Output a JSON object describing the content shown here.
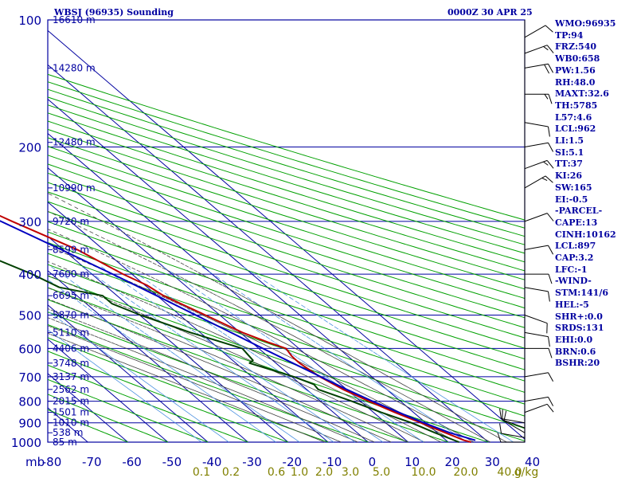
{
  "header": {
    "station": "WBSJ (96935) Sounding",
    "time": "0000Z 30 APR 25"
  },
  "indices": [
    "WMO:96935",
    "TP:94",
    "FRZ:540",
    "WB0:658",
    "PW:1.56",
    "RH:48.0",
    "MAXT:32.6",
    "TH:5785",
    "L57:4.6",
    "LCL:962",
    "LI:1.5",
    "SI:5.1",
    "TT:37",
    "KI:26",
    "SW:165",
    "EI:-0.5",
    "-PARCEL-",
    "CAPE:13",
    "CINH:10162",
    "LCL:897",
    "CAP:3.2",
    "LFC:-1",
    "-WIND-",
    "STM:141/6",
    "HEL:-5",
    "SHR+:0.0",
    "SRDS:131",
    "EHI:0.0",
    "BRN:0.6",
    "BSHR:20"
  ],
  "colors": {
    "grid": "#0000a0",
    "dry_adiabat": "#00a000",
    "moist_adiabat": "#404040",
    "mixing_ratio": "#4a90e0",
    "temperature": "#c00000",
    "dewpoint": "#004000",
    "parcel": "#0000c0",
    "mixing_labels": "#808000",
    "wind_barb": "#000000"
  },
  "chart_data": {
    "type": "skew-t log-p sounding",
    "x_axis_unit_label": "mb",
    "pressure_levels_mb": [
      100,
      200,
      300,
      400,
      500,
      600,
      700,
      800,
      900,
      1000
    ],
    "temperature_ticks_c": [
      -80,
      -70,
      -60,
      -50,
      -40,
      -30,
      -20,
      -10,
      0,
      10,
      20,
      30,
      40
    ],
    "temperature_tick_labels": [
      "-80",
      "-70",
      "-60",
      "-50",
      "-40",
      "-30",
      "-20",
      "-10",
      "0",
      "10",
      "20",
      "30",
      "40"
    ],
    "mixing_ratio_labels": [
      "0.1",
      "0.2",
      "0.6",
      "1.0",
      "2.0",
      "3.0",
      "5.0",
      "10.0",
      "20.0",
      "40.0",
      "g/kg"
    ],
    "height_labels": [
      {
        "p": 100,
        "label": "16610 m"
      },
      {
        "p": 130,
        "label": "14280 m"
      },
      {
        "p": 195,
        "label": "12480 m"
      },
      {
        "p": 250,
        "label": "10990 m"
      },
      {
        "p": 300,
        "label": "9720 m"
      },
      {
        "p": 350,
        "label": "8599 m"
      },
      {
        "p": 400,
        "label": "7600 m"
      },
      {
        "p": 450,
        "label": "6695 m"
      },
      {
        "p": 500,
        "label": "5870 m"
      },
      {
        "p": 550,
        "label": "5110 m"
      },
      {
        "p": 600,
        "label": "4406 m"
      },
      {
        "p": 650,
        "label": "3748 m"
      },
      {
        "p": 700,
        "label": "3137 m"
      },
      {
        "p": 750,
        "label": "2562 m"
      },
      {
        "p": 800,
        "label": "2015 m"
      },
      {
        "p": 850,
        "label": "1501 m"
      },
      {
        "p": 900,
        "label": "1010 m"
      },
      {
        "p": 950,
        "label": "538 m"
      },
      {
        "p": 1000,
        "label": "85 m"
      }
    ],
    "series": [
      {
        "key": "temperature",
        "points": [
          [
            1000,
            25.7
          ],
          [
            990,
            24.5
          ],
          [
            950,
            22.0
          ],
          [
            925,
            20.4
          ],
          [
            900,
            18.8
          ],
          [
            850,
            15.3
          ],
          [
            800,
            12.1
          ],
          [
            750,
            9.1
          ],
          [
            700,
            7.0
          ],
          [
            650,
            5.9
          ],
          [
            640,
            5.9
          ],
          [
            625,
            6.0
          ],
          [
            600,
            6.8
          ],
          [
            580,
            4.1
          ],
          [
            550,
            0.6
          ],
          [
            500,
            -3.6
          ],
          [
            450,
            -8.4
          ],
          [
            425,
            -9.5
          ],
          [
            400,
            -12.2
          ],
          [
            350,
            -16.5
          ],
          [
            300,
            -24.5
          ],
          [
            250,
            -33.2
          ],
          [
            200,
            -45.0
          ],
          [
            150,
            -58.6
          ],
          [
            130,
            -64.8
          ],
          [
            120,
            -70.0
          ],
          [
            100,
            -78.5
          ]
        ]
      },
      {
        "key": "dewpoint",
        "points": [
          [
            1000,
            22.7
          ],
          [
            950,
            19.4
          ],
          [
            900,
            16.4
          ],
          [
            850,
            11.9
          ],
          [
            800,
            7.8
          ],
          [
            750,
            2.9
          ],
          [
            730,
            3.3
          ],
          [
            700,
            0.5
          ],
          [
            650,
            -6.6
          ],
          [
            640,
            -4.9
          ],
          [
            600,
            -4.1
          ],
          [
            550,
            -12.4
          ],
          [
            500,
            -19.8
          ],
          [
            470,
            -23.6
          ],
          [
            450,
            -23.6
          ],
          [
            430,
            -32.0
          ],
          [
            400,
            -34.9
          ],
          [
            350,
            -42.6
          ],
          [
            300,
            -46.7
          ],
          [
            250,
            -48.5
          ],
          [
            200,
            -50.1
          ],
          [
            180,
            -54.9
          ],
          [
            150,
            -60.7
          ],
          [
            130,
            -67.0
          ],
          [
            120,
            -72.0
          ]
        ]
      },
      {
        "key": "parcel",
        "points": [
          [
            990,
            27.3
          ],
          [
            950,
            23.1
          ],
          [
            900,
            19.5
          ],
          [
            850,
            16.3
          ],
          [
            800,
            13.0
          ],
          [
            750,
            10.0
          ],
          [
            700,
            7.2
          ],
          [
            650,
            4.2
          ],
          [
            600,
            1.0
          ],
          [
            550,
            -2.3
          ],
          [
            500,
            -6.0
          ],
          [
            450,
            -10.1
          ],
          [
            400,
            -14.8
          ],
          [
            350,
            -20.5
          ],
          [
            300,
            -27.3
          ],
          [
            250,
            -35.5
          ],
          [
            200,
            -46.0
          ],
          [
            150,
            -59.5
          ],
          [
            130,
            -66.0
          ],
          [
            120,
            -70.0
          ]
        ]
      }
    ],
    "wind_barbs": [
      {
        "p": 110,
        "dir": 60,
        "spd": 10
      },
      {
        "p": 120,
        "dir": 70,
        "spd": 15
      },
      {
        "p": 130,
        "dir": 80,
        "spd": 20
      },
      {
        "p": 150,
        "dir": 90,
        "spd": 15
      },
      {
        "p": 175,
        "dir": 100,
        "spd": 10
      },
      {
        "p": 200,
        "dir": 80,
        "spd": 10
      },
      {
        "p": 225,
        "dir": 70,
        "spd": 15
      },
      {
        "p": 250,
        "dir": 60,
        "spd": 15
      },
      {
        "p": 300,
        "dir": 70,
        "spd": 10
      },
      {
        "p": 350,
        "dir": 80,
        "spd": 10
      },
      {
        "p": 400,
        "dir": 90,
        "spd": 10
      },
      {
        "p": 430,
        "dir": 100,
        "spd": 10
      },
      {
        "p": 500,
        "dir": 110,
        "spd": 10
      },
      {
        "p": 550,
        "dir": 100,
        "spd": 10
      },
      {
        "p": 600,
        "dir": 90,
        "spd": 10
      },
      {
        "p": 700,
        "dir": 80,
        "spd": 10
      },
      {
        "p": 800,
        "dir": 80,
        "spd": 10
      },
      {
        "p": 850,
        "dir": 70,
        "spd": 10
      },
      {
        "p": 900,
        "dir": 280,
        "spd": 10
      },
      {
        "p": 925,
        "dir": 290,
        "spd": 10
      },
      {
        "p": 950,
        "dir": 300,
        "spd": 10
      },
      {
        "p": 975,
        "dir": 280,
        "spd": 10
      },
      {
        "p": 1000,
        "dir": 270,
        "spd": 10
      }
    ]
  }
}
